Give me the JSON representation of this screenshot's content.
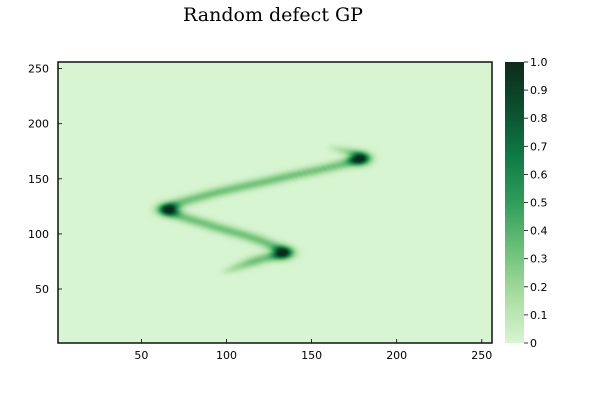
{
  "chart_data": {
    "type": "heatmap",
    "title": "Random defect GP",
    "xlabel": "",
    "ylabel": "",
    "xlim": [
      1,
      256
    ],
    "ylim": [
      1,
      256
    ],
    "x_ticks": [
      50,
      100,
      150,
      200,
      250
    ],
    "y_ticks": [
      50,
      100,
      150,
      200,
      250
    ],
    "colorbar": {
      "range": [
        0,
        1
      ],
      "ticks": [
        0,
        0.1,
        0.2,
        0.3,
        0.4,
        0.5,
        0.6,
        0.7,
        0.8,
        0.9,
        1.0
      ],
      "tick_labels": [
        "0",
        "0.1",
        "0.2",
        "0.3",
        "0.4",
        "0.5",
        "0.6",
        "0.7",
        "0.8",
        "0.9",
        "1.0"
      ]
    },
    "colormap": [
      "#d8f5d2",
      "#a8dda0",
      "#6cc07a",
      "#2f9e5a",
      "#0e7a45",
      "#0c4f2e",
      "#0d2b1b"
    ],
    "defect_curve": {
      "description_points": [
        {
          "x": 100,
          "y": 66
        },
        {
          "x": 118,
          "y": 76
        },
        {
          "x": 133,
          "y": 83
        },
        {
          "x": 118,
          "y": 95
        },
        {
          "x": 90,
          "y": 108
        },
        {
          "x": 66,
          "y": 122
        },
        {
          "x": 88,
          "y": 135
        },
        {
          "x": 130,
          "y": 150
        },
        {
          "x": 178,
          "y": 168
        },
        {
          "x": 163,
          "y": 178
        }
      ],
      "peaks": [
        {
          "x": 133,
          "y": 83,
          "value": 1.0
        },
        {
          "x": 66,
          "y": 122,
          "value": 1.0
        },
        {
          "x": 178,
          "y": 168,
          "value": 1.0
        }
      ]
    }
  }
}
